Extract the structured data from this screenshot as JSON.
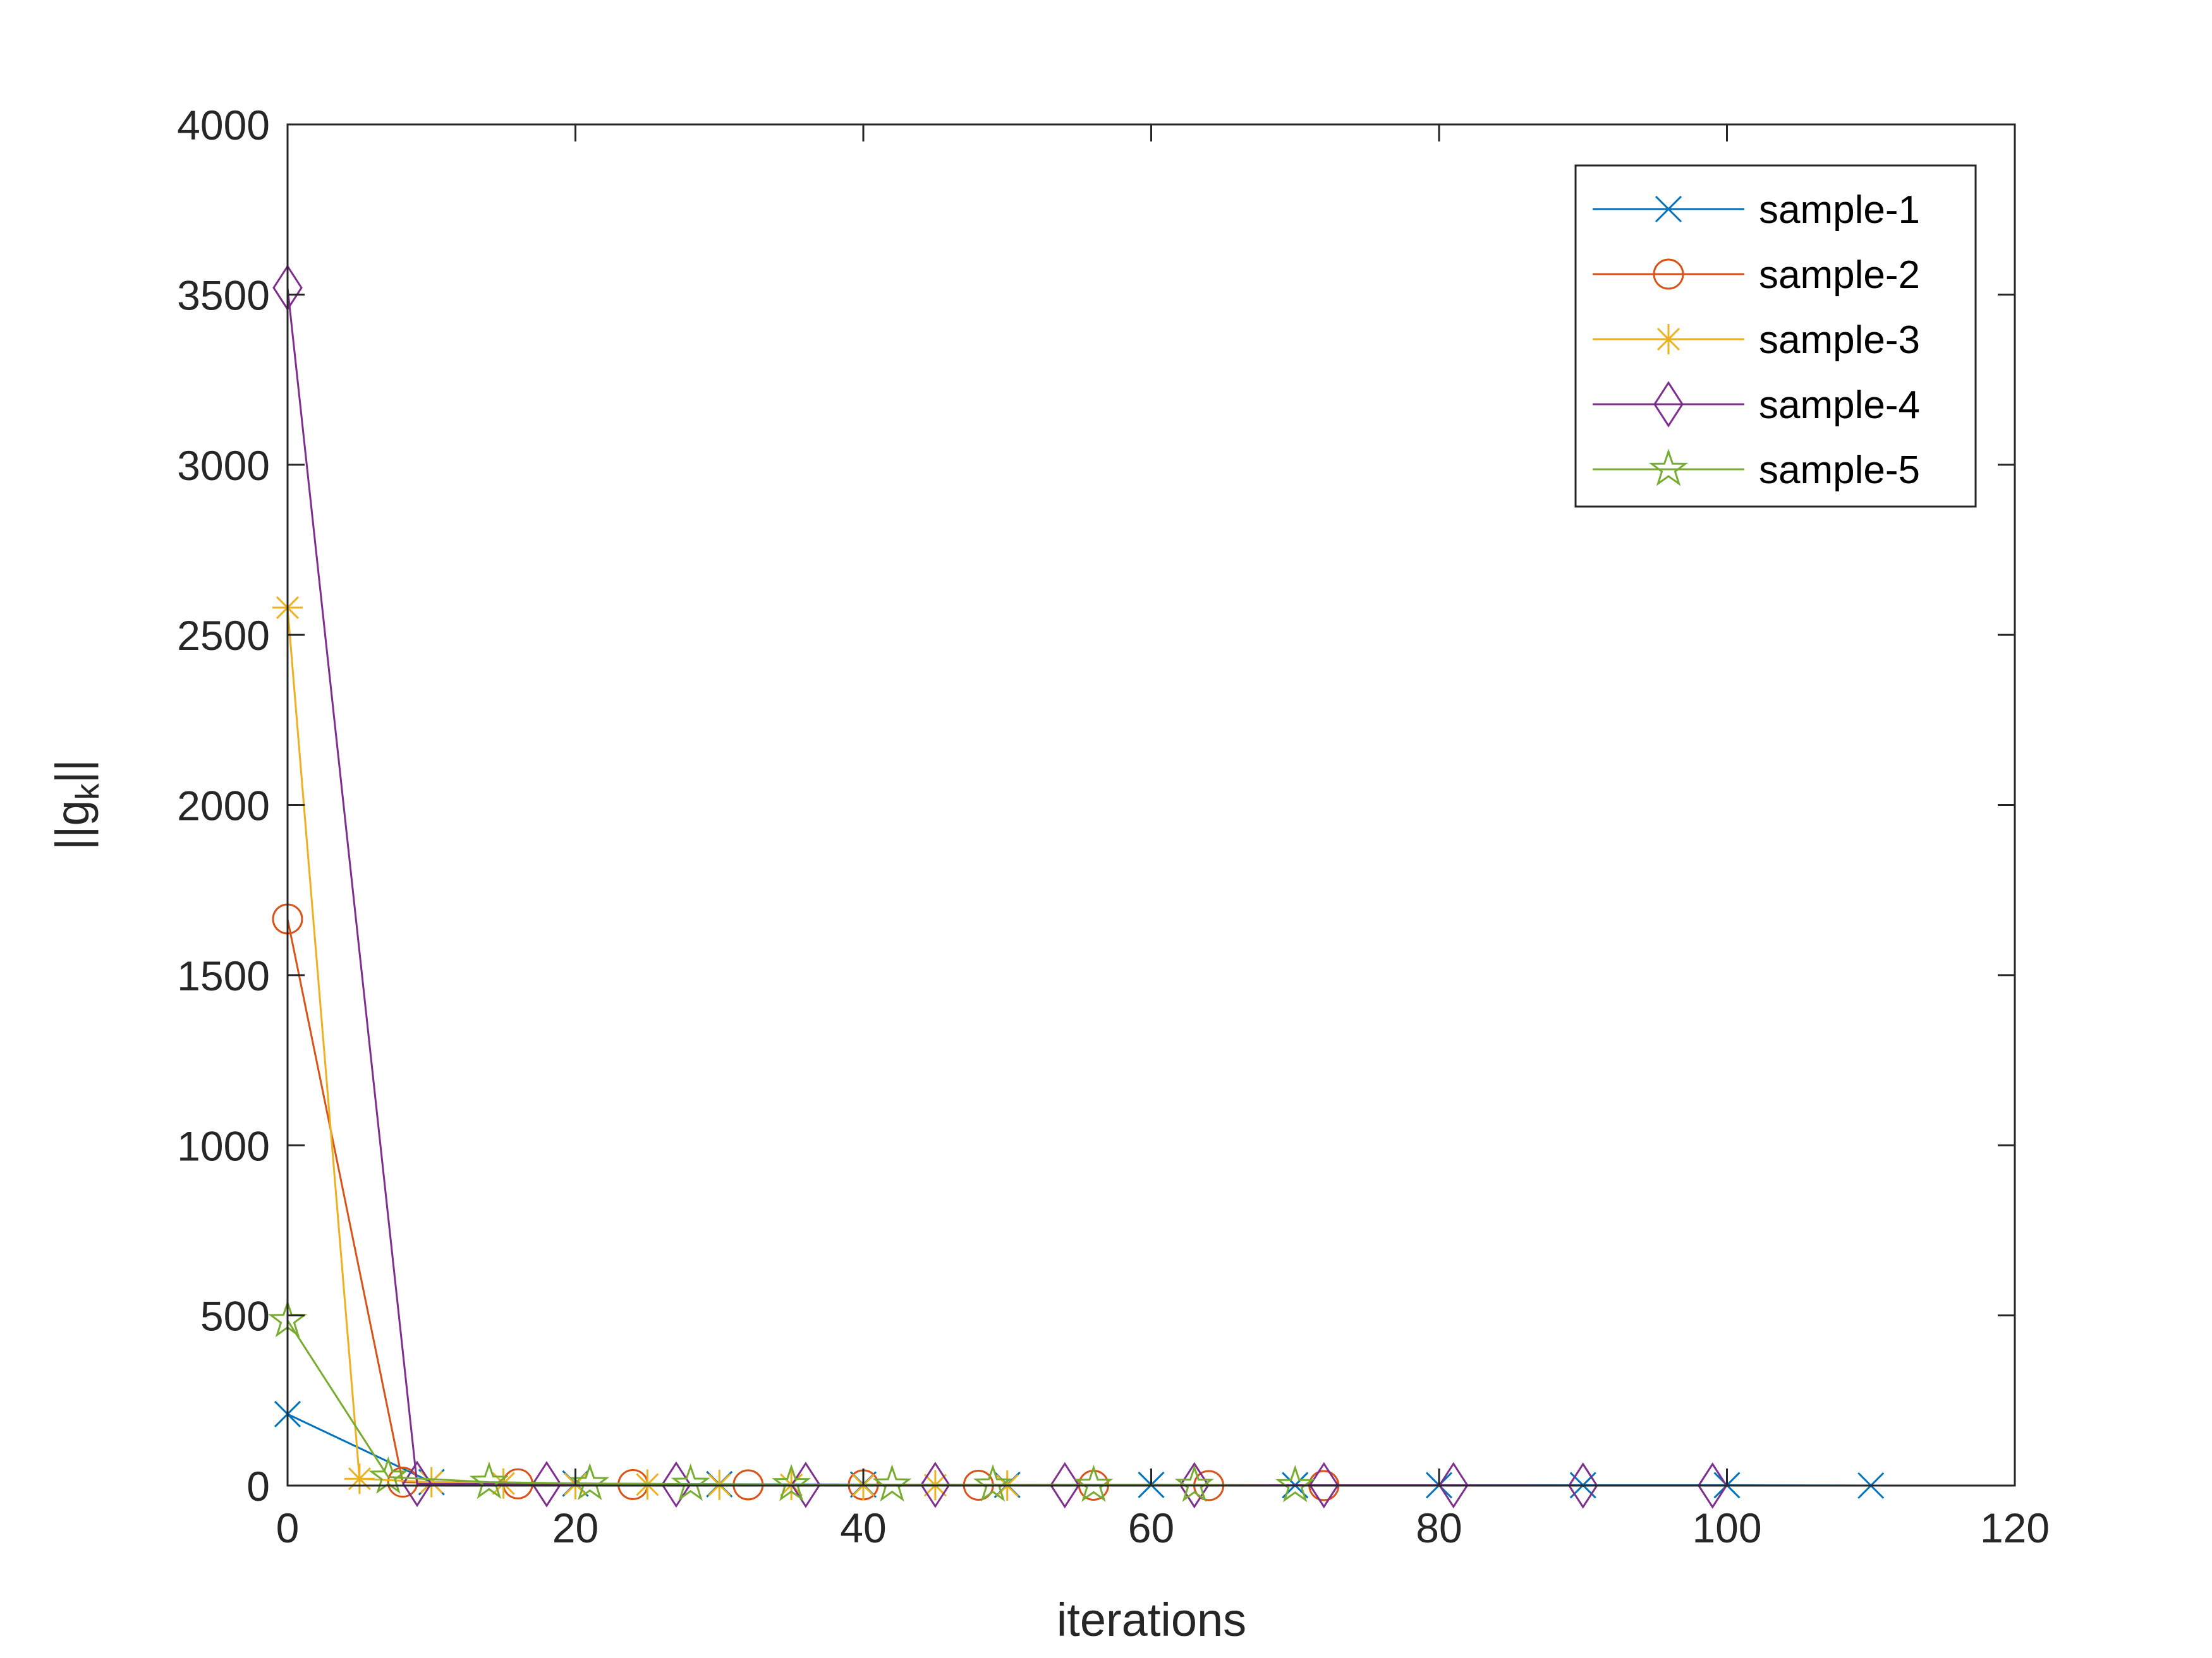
{
  "chart_data": {
    "type": "line",
    "title": "",
    "xlabel": "iterations",
    "ylabel": {
      "base": "||g",
      "sub": "k",
      "tail": "||"
    },
    "xlim": [
      0,
      120
    ],
    "ylim": [
      0,
      4000
    ],
    "xticks": [
      0,
      20,
      40,
      60,
      80,
      100,
      120
    ],
    "yticks": [
      0,
      500,
      1000,
      1500,
      2000,
      2500,
      3000,
      3500,
      4000
    ],
    "grid": false,
    "legend_position": "top-right",
    "series": [
      {
        "name": "sample-1",
        "color": "#0072BD",
        "marker": "x",
        "x": [
          0,
          10,
          20,
          30,
          40,
          50,
          60,
          70,
          80,
          90,
          100,
          110
        ],
        "y": [
          210,
          10,
          6,
          4,
          3,
          2,
          2,
          1,
          1,
          1,
          1,
          0
        ]
      },
      {
        "name": "sample-2",
        "color": "#D95319",
        "marker": "o",
        "x": [
          0,
          8,
          16,
          24,
          32,
          40,
          48,
          56,
          64,
          72
        ],
        "y": [
          1665,
          10,
          5,
          3,
          2,
          2,
          1,
          1,
          0,
          0
        ]
      },
      {
        "name": "sample-3",
        "color": "#EDB120",
        "marker": "*",
        "x": [
          0,
          5,
          10,
          15,
          20,
          25,
          30,
          35,
          40,
          45,
          50
        ],
        "y": [
          2580,
          20,
          10,
          6,
          4,
          3,
          2,
          2,
          1,
          1,
          0
        ]
      },
      {
        "name": "sample-4",
        "color": "#7E2F8E",
        "marker": "d",
        "x": [
          0,
          9,
          18,
          27,
          36,
          45,
          54,
          63,
          72,
          81,
          90,
          99
        ],
        "y": [
          3520,
          5,
          4,
          3,
          2,
          2,
          1,
          1,
          1,
          1,
          0,
          0
        ]
      },
      {
        "name": "sample-5",
        "color": "#77AC30",
        "marker": "p",
        "x": [
          0,
          7,
          14,
          21,
          28,
          35,
          42,
          49,
          56,
          63,
          70
        ],
        "y": [
          485,
          25,
          10,
          6,
          4,
          3,
          2,
          2,
          1,
          1,
          0
        ]
      }
    ]
  }
}
